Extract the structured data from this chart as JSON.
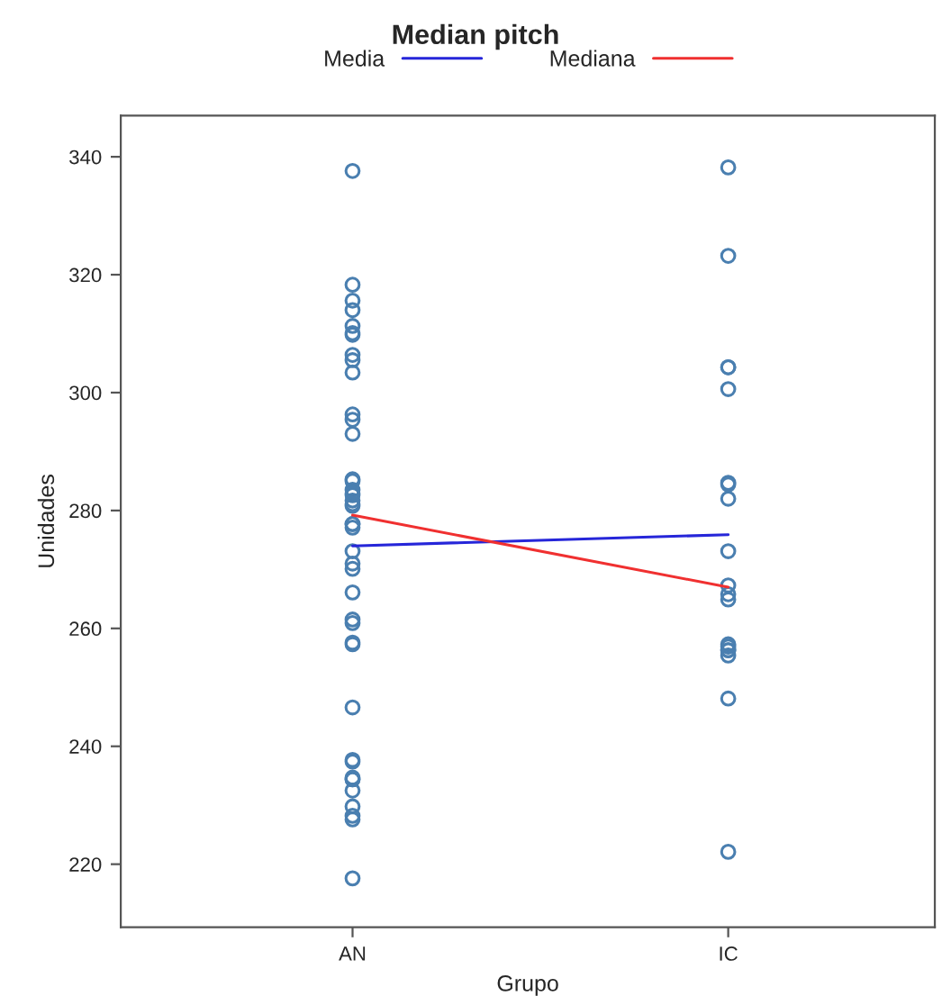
{
  "chart_data": {
    "type": "scatter",
    "title": "Median pitch",
    "xlabel": "Grupo",
    "ylabel": "Unidades",
    "categories": [
      "AN",
      "IC"
    ],
    "ylim": [
      209.3,
      347
    ],
    "yticks": [
      220,
      240,
      260,
      280,
      300,
      320,
      340
    ],
    "grid": false,
    "legend": "top",
    "series": [
      {
        "color": "#4a7fb0",
        "marker": "circle",
        "x": [
          "AN",
          "AN",
          "AN",
          "AN",
          "AN",
          "AN",
          "AN",
          "AN",
          "AN",
          "AN",
          "AN",
          "AN",
          "AN",
          "AN",
          "AN",
          "AN",
          "AN",
          "AN",
          "AN",
          "AN",
          "AN",
          "AN",
          "AN",
          "AN",
          "AN",
          "AN",
          "AN",
          "AN",
          "AN",
          "AN",
          "AN",
          "AN",
          "AN",
          "AN",
          "AN",
          "AN",
          "AN",
          "AN",
          "AN",
          "AN",
          "AN",
          "AN",
          "AN",
          "IC",
          "IC",
          "IC",
          "IC",
          "IC",
          "IC",
          "IC",
          "IC",
          "IC",
          "IC",
          "IC",
          "IC",
          "IC",
          "IC",
          "IC",
          "IC",
          "IC",
          "IC",
          "IC"
        ],
        "values": [
          337.6,
          318.3,
          315.6,
          314.0,
          311.3,
          309.8,
          310.1,
          305.5,
          306.4,
          303.4,
          295.4,
          296.3,
          293.0,
          285.0,
          285.3,
          282.6,
          283.5,
          281.7,
          277.7,
          282.9,
          280.8,
          281.1,
          277.7,
          277.1,
          273.1,
          271.0,
          270.1,
          266.1,
          261.5,
          260.9,
          257.6,
          257.3,
          246.6,
          237.7,
          237.4,
          234.4,
          234.4,
          234.7,
          232.5,
          229.8,
          228.2,
          227.6,
          217.6,
          338.2,
          323.2,
          304.3,
          304.3,
          300.6,
          284.7,
          284.4,
          282.0,
          273.1,
          267.3,
          265.8,
          264.9,
          257.3,
          256.9,
          255.4,
          256.3,
          256.3,
          248.1,
          222.1
        ]
      },
      {
        "type": "line",
        "name": "Media",
        "color": "#2626d9",
        "x": [
          "AN",
          "IC"
        ],
        "values": [
          274.0,
          275.9
        ]
      },
      {
        "type": "line",
        "name": "Mediana",
        "color": "#f03030",
        "x": [
          "AN",
          "IC"
        ],
        "values": [
          279.2,
          267.0
        ]
      }
    ]
  }
}
